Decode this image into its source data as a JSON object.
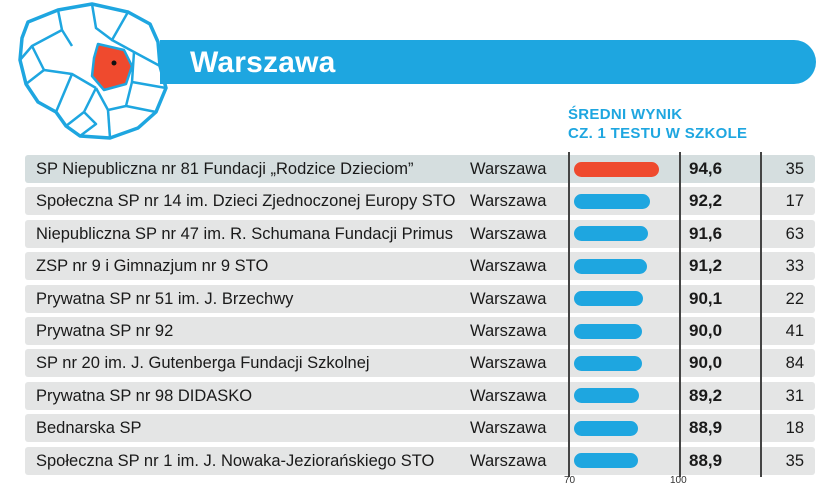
{
  "header": {
    "title": "Warszawa",
    "column_title_line1": "ŚREDNI WYNIK",
    "column_title_line2": "CZ. 1 TESTU W SZKOLE"
  },
  "colors": {
    "accent": "#1ea6e0",
    "highlight": "#ef4a2e",
    "row_background": "#e4e5e5",
    "highlight_row_background": "#d5dedf",
    "header_text": "#1ea6e0"
  },
  "chart_data": {
    "type": "bar",
    "orientation": "horizontal",
    "xlim": [
      70,
      100
    ],
    "x_tick_labels": [
      "70",
      "100"
    ],
    "categories": [
      "SP Niepubliczna nr 81 Fundacji „Rodzice Dzieciom”",
      "Społeczna SP nr 14 im. Dzieci Zjednoczonej Europy STO",
      "Niepubliczna SP nr 47 im. R. Schumana Fundacji Primus",
      "ZSP nr 9 i Gimnazjum nr 9 STO",
      "Prywatna SP nr 51 im. J. Brzechwy",
      "Prywatna SP nr 92",
      "SP nr 20 im. J. Gutenberga Fundacji Szkolnej",
      "Prywatna SP nr 98 DIDASKO",
      "Bednarska SP",
      "Społeczna SP nr 1 im. J. Nowaka-Jeziorańskiego STO"
    ],
    "city": [
      "Warszawa",
      "Warszawa",
      "Warszawa",
      "Warszawa",
      "Warszawa",
      "Warszawa",
      "Warszawa",
      "Warszawa",
      "Warszawa",
      "Warszawa"
    ],
    "values": [
      94.6,
      92.2,
      91.6,
      91.2,
      90.1,
      90.0,
      90.0,
      89.2,
      88.9,
      88.9
    ],
    "value_labels": [
      "94,6",
      "92,2",
      "91,6",
      "91,2",
      "90,1",
      "90,0",
      "90,0",
      "89,2",
      "88,9",
      "88,9"
    ],
    "counts": [
      "35",
      "17",
      "63",
      "33",
      "22",
      "41",
      "84",
      "31",
      "18",
      "35"
    ],
    "highlighted_index": 0
  }
}
